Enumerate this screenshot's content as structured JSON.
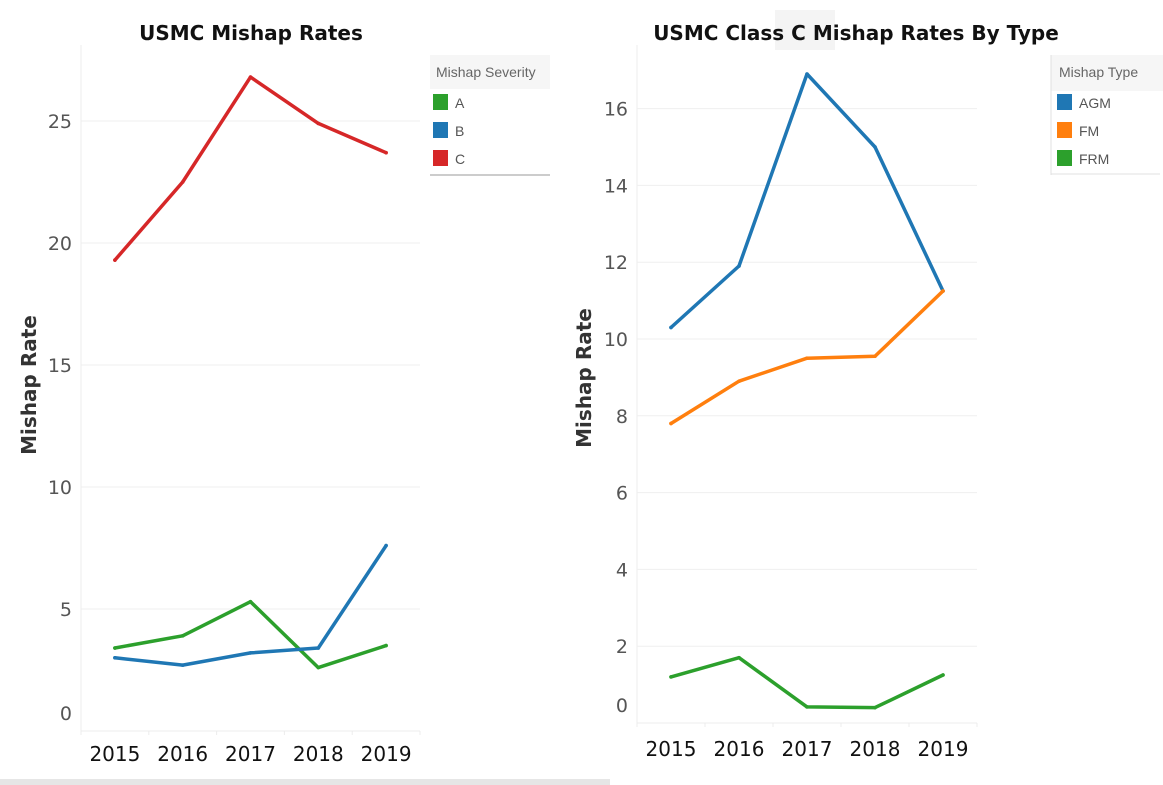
{
  "chart_data": [
    {
      "type": "line",
      "title": "USMC Mishap Rates",
      "xlabel": "",
      "ylabel": "Mishap Rate",
      "categories": [
        "2015",
        "2016",
        "2017",
        "2018",
        "2019"
      ],
      "yticks": [
        0,
        5,
        10,
        15,
        20,
        25
      ],
      "ylim": [
        0,
        27
      ],
      "grid": true,
      "legend": {
        "title": "Mishap Severity",
        "placement": "top-right",
        "items": [
          {
            "label": "A",
            "color": "#2ca02c"
          },
          {
            "label": "B",
            "color": "#1f77b4"
          },
          {
            "label": "C",
            "color": "#d62728"
          }
        ]
      },
      "series": [
        {
          "name": "A",
          "color": "#2ca02c",
          "values": [
            3.4,
            3.9,
            5.3,
            2.6,
            3.5
          ]
        },
        {
          "name": "B",
          "color": "#1f77b4",
          "values": [
            3.0,
            2.7,
            3.2,
            3.4,
            7.6
          ]
        },
        {
          "name": "C",
          "color": "#d62728",
          "values": [
            19.3,
            22.5,
            26.8,
            24.9,
            23.7
          ]
        }
      ]
    },
    {
      "type": "line",
      "title": "USMC Class C Mishap Rates By Type",
      "xlabel": "",
      "ylabel": "Mishap Rate",
      "categories": [
        "2015",
        "2016",
        "2017",
        "2018",
        "2019"
      ],
      "yticks": [
        0,
        2,
        4,
        6,
        8,
        10,
        12,
        14,
        16
      ],
      "ylim": [
        0,
        17
      ],
      "grid": true,
      "legend": {
        "title": "Mishap Type",
        "placement": "top-right",
        "items": [
          {
            "label": "AGM",
            "color": "#1f77b4"
          },
          {
            "label": "FM",
            "color": "#ff7f0e"
          },
          {
            "label": "FRM",
            "color": "#2ca02c"
          }
        ]
      },
      "series": [
        {
          "name": "AGM",
          "color": "#1f77b4",
          "values": [
            10.3,
            11.9,
            16.9,
            15.0,
            11.25
          ]
        },
        {
          "name": "FM",
          "color": "#ff7f0e",
          "values": [
            7.8,
            8.9,
            9.5,
            9.55,
            11.25
          ]
        },
        {
          "name": "FRM",
          "color": "#2ca02c",
          "values": [
            1.2,
            1.7,
            0.42,
            0.4,
            1.25
          ]
        }
      ]
    }
  ]
}
